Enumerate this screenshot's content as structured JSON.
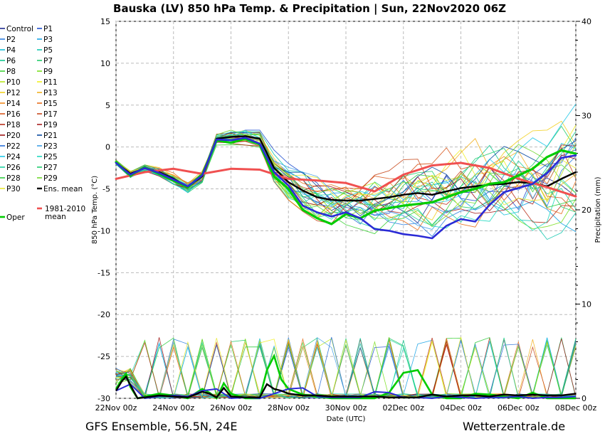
{
  "chart_data": {
    "type": "line",
    "title": "Bauska  (LV)  850 hPa Temp. & Precipitation | Sun, 22Nov2020 06Z",
    "ylabel": "850 hPa Temp. (°C)",
    "y2label": "Precipitation (mm)",
    "xlabel": "Date (UTC)",
    "ylim": [
      -30,
      15
    ],
    "y2lim": [
      0,
      40
    ],
    "xlim": [
      0,
      16
    ],
    "yticks": [
      15,
      10,
      5,
      0,
      -5,
      -10,
      -15,
      -20,
      -25,
      -30
    ],
    "y2ticks": [
      40,
      30,
      20,
      10,
      0
    ],
    "xtick_labels": [
      "22Nov 00z",
      "24Nov 00z",
      "26Nov 00z",
      "28Nov 00z",
      "30Nov 00z",
      "02Dec 00z",
      "04Dec 00z",
      "06Dec 00z",
      "08Dec 00z"
    ],
    "grid": true,
    "legend_position": "left",
    "legend_items": [
      "Control",
      "P1",
      "P2",
      "P3",
      "P4",
      "P5",
      "P6",
      "P7",
      "P8",
      "P9",
      "P10",
      "P11",
      "P12",
      "P13",
      "P14",
      "P15",
      "P16",
      "P17",
      "P18",
      "P19",
      "P20",
      "P21",
      "P22",
      "P23",
      "P24",
      "P25",
      "P26",
      "P27",
      "P28",
      "P29",
      "P30",
      "Ens. mean",
      "1981-2010 mean",
      "Oper"
    ],
    "member_colors": [
      "#1f2c8f",
      "#1f4fd0",
      "#2f7fe0",
      "#1aa3e6",
      "#17c0d8",
      "#15c8b0",
      "#14c890",
      "#22cc6a",
      "#3fd23a",
      "#7adf20",
      "#b8e81e",
      "#f0f020",
      "#f2d020",
      "#f2b020",
      "#f08a20",
      "#e8701e",
      "#d8581e",
      "#c84a1e",
      "#b8301c",
      "#a82020",
      "#a01818",
      "#0a4aa0",
      "#2a70d8",
      "#40a0e8",
      "#20c8e8",
      "#20d8c0",
      "#20d0a0",
      "#22cc70",
      "#30cc40",
      "#70d830",
      "#e8e830"
    ],
    "series": [
      {
        "name": "Ens. mean",
        "color": "#000000",
        "x": [
          0,
          0.5,
          1,
          1.5,
          2,
          2.5,
          3,
          3.5,
          4,
          4.5,
          5,
          5.5,
          6,
          6.5,
          7,
          7.5,
          8,
          8.5,
          9,
          9.5,
          10,
          10.5,
          11,
          11.5,
          12,
          12.5,
          13,
          13.5,
          14,
          14.5,
          15,
          15.5,
          16
        ],
        "values": [
          -1.8,
          -3.2,
          -2.5,
          -3.0,
          -3.8,
          -4.8,
          -3.5,
          1.0,
          1.2,
          1.3,
          1.0,
          -2.5,
          -4.2,
          -5.2,
          -6.0,
          -6.3,
          -6.4,
          -6.4,
          -6.2,
          -6.0,
          -5.7,
          -5.5,
          -5.7,
          -5.3,
          -4.9,
          -4.7,
          -4.5,
          -4.4,
          -4.2,
          -4.3,
          -4.7,
          -3.8,
          -3.0
        ]
      },
      {
        "name": "1981-2010 mean",
        "color": "#f05050",
        "x": [
          0,
          1,
          2,
          3,
          4,
          5,
          6,
          7,
          8,
          9,
          10,
          11,
          12,
          13,
          14,
          15,
          16
        ],
        "values": [
          -3.8,
          -3.0,
          -2.6,
          -3.2,
          -2.6,
          -2.7,
          -3.8,
          -4.0,
          -4.3,
          -5.3,
          -3.3,
          -2.2,
          -1.9,
          -2.5,
          -3.8,
          -4.8,
          -5.9
        ]
      },
      {
        "name": "Oper",
        "color": "#00cc00",
        "x": [
          0,
          0.5,
          1,
          1.5,
          2,
          2.5,
          3,
          3.5,
          4,
          4.5,
          5,
          5.5,
          6,
          6.5,
          7,
          7.5,
          8,
          8.5,
          9,
          9.5,
          10,
          10.5,
          11,
          11.5,
          12,
          12.5,
          13,
          13.5,
          14,
          14.5,
          15,
          15.5,
          16
        ],
        "values": [
          -1.8,
          -3.4,
          -2.4,
          -3.2,
          -4.0,
          -4.8,
          -3.3,
          0.8,
          0.5,
          1.0,
          0.3,
          -3.5,
          -5.0,
          -7.5,
          -8.5,
          -9.2,
          -8.0,
          -8.5,
          -7.6,
          -7.3,
          -7.0,
          -6.8,
          -6.6,
          -6.0,
          -5.4,
          -5.0,
          -4.4,
          -4.2,
          -3.4,
          -2.6,
          -1.2,
          -0.4,
          -0.8
        ]
      },
      {
        "name": "Control",
        "color": "#2b2bd6",
        "x": [
          0,
          0.5,
          1,
          1.5,
          2,
          2.5,
          3,
          3.5,
          4,
          4.5,
          5,
          5.5,
          6,
          6.5,
          7,
          7.5,
          8,
          8.5,
          9,
          9.5,
          10,
          10.5,
          11,
          11.5,
          12,
          12.5,
          13,
          13.5,
          14,
          14.5,
          15,
          15.5,
          16
        ],
        "values": [
          -1.9,
          -3.3,
          -2.5,
          -3.1,
          -3.9,
          -4.7,
          -3.4,
          0.9,
          0.8,
          1.1,
          0.4,
          -3.0,
          -4.6,
          -7.0,
          -7.8,
          -8.3,
          -7.8,
          -8.5,
          -9.8,
          -10.0,
          -10.4,
          -10.6,
          -10.9,
          -9.4,
          -8.6,
          -8.9,
          -6.9,
          -5.4,
          -4.9,
          -4.4,
          -3.1,
          -1.3,
          -1.0
        ]
      }
    ],
    "precipitation": {
      "units": "mm",
      "ens_mean": {
        "x": [
          0,
          0.2,
          0.35,
          0.5,
          0.75,
          1,
          1.5,
          2,
          2.5,
          3,
          3.25,
          3.5,
          3.75,
          4,
          4.5,
          5,
          5.25,
          5.5,
          5.75,
          6,
          6.5,
          7,
          7.5,
          8,
          8.5,
          9,
          9.5,
          10,
          10.5,
          11,
          11.5,
          12,
          12.5,
          13,
          13.5,
          14,
          14.5,
          15,
          15.5,
          16
        ],
        "values": [
          0.8,
          1.8,
          2.3,
          1.4,
          0,
          0.1,
          0.3,
          0.2,
          0.1,
          0.7,
          0.5,
          0.1,
          1.1,
          0.2,
          0.1,
          0.1,
          1.5,
          1.0,
          0.8,
          0.5,
          0.3,
          0.3,
          0.2,
          0.2,
          0.2,
          0.2,
          0.1,
          0.1,
          0.1,
          0.4,
          0.2,
          0.3,
          0.3,
          0.2,
          0.4,
          0.3,
          0.4,
          0.3,
          0.3,
          0.5
        ]
      },
      "oper": {
        "x": [
          0,
          0.2,
          0.35,
          0.5,
          0.75,
          1,
          1.5,
          2,
          2.5,
          3,
          3.25,
          3.5,
          3.75,
          4,
          4.5,
          5,
          5.25,
          5.5,
          5.75,
          6,
          6.5,
          7,
          7.5,
          8,
          8.5,
          9,
          9.5,
          10,
          10.5,
          11,
          11.5,
          12,
          12.5,
          13,
          13.5,
          14,
          14.5,
          15,
          15.5,
          16
        ],
        "values": [
          1.0,
          2.0,
          2.6,
          1.2,
          0,
          0.2,
          0.5,
          0.3,
          0,
          1.0,
          0.6,
          0,
          1.6,
          0.5,
          0,
          0,
          3.0,
          4.5,
          2.0,
          1.0,
          0.4,
          0.2,
          0,
          0,
          0,
          0,
          0.6,
          2.7,
          3.0,
          0.4,
          0,
          0,
          0.5,
          0.4,
          0.2,
          0,
          0.6,
          0,
          0,
          0
        ]
      },
      "control": {
        "x": [
          0,
          0.5,
          1,
          1.5,
          2,
          2.5,
          3,
          3.5,
          4,
          4.5,
          5,
          5.5,
          6,
          6.5,
          7,
          7.5,
          8,
          8.5,
          9,
          9.5,
          10,
          10.5,
          11,
          11.5,
          12,
          12.5,
          13,
          13.5,
          14,
          14.5,
          15,
          15.5,
          16
        ],
        "values": [
          0.8,
          1.5,
          0,
          0.2,
          0.3,
          0.2,
          0.8,
          1.0,
          0,
          0.1,
          0,
          0.5,
          1.0,
          1.1,
          0.2,
          0.1,
          0.1,
          0.1,
          0.7,
          0.6,
          0.1,
          0.1,
          0,
          0.2,
          0.1,
          0,
          0.1,
          0.1,
          0.2,
          0,
          0.1,
          0.1,
          0.2
        ]
      }
    }
  },
  "footer": {
    "left": "GFS Ensemble, 56.5N, 24E",
    "right": "Wetterzentrale.de"
  }
}
